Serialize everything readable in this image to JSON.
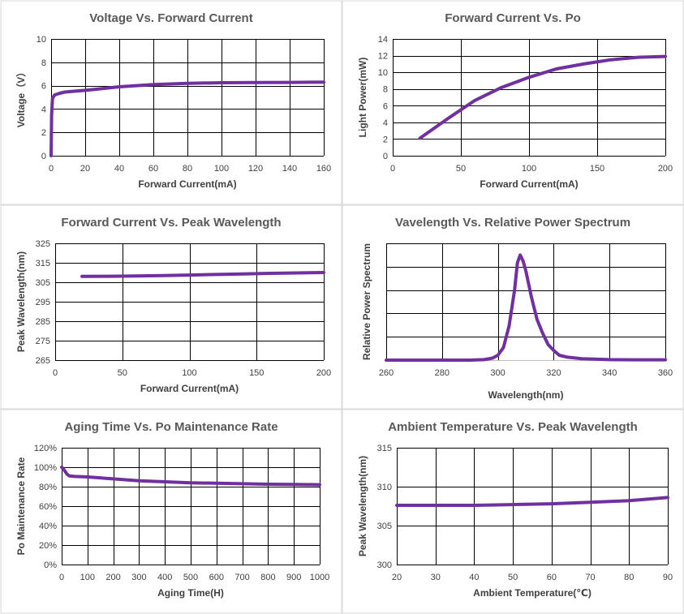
{
  "colors": {
    "series": "#7030a0",
    "grid": "#000000",
    "border": "#d9d9d9",
    "title": "#595959",
    "text": "#404040"
  },
  "chart_data": [
    {
      "type": "line",
      "title": "Voltage Vs. Forward Current",
      "xlabel": "Forward Current(mA)",
      "ylabel": "Voltage（V）",
      "xlim": [
        0,
        160
      ],
      "ylim": [
        0,
        10
      ],
      "xticks": [
        0,
        20,
        40,
        60,
        80,
        100,
        120,
        140,
        160
      ],
      "yticks": [
        0,
        2,
        4,
        6,
        8,
        10
      ],
      "xtick_labels": [
        "0",
        "20",
        "40",
        "60",
        "80",
        "100",
        "120",
        "140",
        "160"
      ],
      "ytick_labels": [
        "0",
        "2",
        "4",
        "6",
        "8",
        "10"
      ],
      "grid": true,
      "x": [
        0,
        0.3,
        0.8,
        2,
        5,
        8,
        12,
        20,
        30,
        40,
        60,
        80,
        100,
        120,
        140,
        160
      ],
      "y": [
        0,
        3.5,
        4.9,
        5.2,
        5.35,
        5.45,
        5.5,
        5.6,
        5.75,
        5.9,
        6.1,
        6.2,
        6.25,
        6.27,
        6.28,
        6.3
      ]
    },
    {
      "type": "line",
      "title": "Forward Current Vs. Po",
      "xlabel": "Forward Current(mA)",
      "ylabel": "Light Power(mW)",
      "xlim": [
        0,
        200
      ],
      "ylim": [
        0,
        14
      ],
      "xticks": [
        0,
        50,
        100,
        150,
        200
      ],
      "yticks": [
        0,
        2,
        4,
        6,
        8,
        10,
        12,
        14
      ],
      "xtick_labels": [
        "0",
        "50",
        "100",
        "150",
        "200"
      ],
      "ytick_labels": [
        "0",
        "2",
        "4",
        "6",
        "8",
        "10",
        "12",
        "14"
      ],
      "grid": true,
      "x": [
        20,
        40,
        60,
        80,
        100,
        120,
        140,
        160,
        180,
        200
      ],
      "y": [
        2.1,
        4.4,
        6.6,
        8.2,
        9.4,
        10.4,
        11.0,
        11.5,
        11.8,
        11.9
      ]
    },
    {
      "type": "line",
      "title": "Forward Current Vs. Peak Wavelength",
      "xlabel": "Forward Current(mA)",
      "ylabel": "Peak Wavelength(nm)",
      "xlim": [
        0,
        200
      ],
      "ylim": [
        265,
        325
      ],
      "xticks": [
        0,
        50,
        100,
        150,
        200
      ],
      "yticks": [
        265,
        275,
        285,
        295,
        305,
        315,
        325
      ],
      "xtick_labels": [
        "0",
        "50",
        "100",
        "150",
        "200"
      ],
      "ytick_labels": [
        "265",
        "275",
        "285",
        "295",
        "305",
        "315",
        "325"
      ],
      "grid": true,
      "x": [
        20,
        40,
        60,
        80,
        100,
        120,
        140,
        160,
        180,
        200
      ],
      "y": [
        308.0,
        308.1,
        308.2,
        308.4,
        308.7,
        309.0,
        309.3,
        309.6,
        309.8,
        310.0
      ]
    },
    {
      "type": "line",
      "title": "Vavelength Vs. Relative Power Spectrum",
      "xlabel": "Wavelength(nm)",
      "ylabel": "Relative Power Spectrum",
      "xlim": [
        260,
        360
      ],
      "ylim": [
        0,
        1.2
      ],
      "xticks": [
        260,
        280,
        300,
        320,
        340,
        360
      ],
      "yticks": [
        0,
        0.24,
        0.48,
        0.72,
        0.96,
        1.2
      ],
      "xtick_labels": [
        "260",
        "280",
        "300",
        "320",
        "340",
        "360"
      ],
      "ytick_labels": [],
      "grid": true,
      "x": [
        260,
        280,
        290,
        295,
        298,
        300,
        302,
        304,
        306,
        307,
        308,
        309,
        310,
        312,
        314,
        316,
        318,
        320,
        322,
        325,
        330,
        340,
        350,
        360
      ],
      "y": [
        0,
        0,
        0,
        0.005,
        0.02,
        0.05,
        0.13,
        0.35,
        0.72,
        1.0,
        1.08,
        1.02,
        0.92,
        0.65,
        0.42,
        0.28,
        0.16,
        0.1,
        0.05,
        0.03,
        0.015,
        0.005,
        0.003,
        0.003
      ]
    },
    {
      "type": "line",
      "title": "Aging Time Vs. Po Maintenance Rate",
      "xlabel": "Aging Time(H)",
      "ylabel": "Po Maintenance Rate",
      "xlim": [
        0,
        1000
      ],
      "ylim": [
        0,
        120
      ],
      "xticks": [
        0,
        100,
        200,
        300,
        400,
        500,
        600,
        700,
        800,
        900,
        1000
      ],
      "yticks": [
        0,
        20,
        40,
        60,
        80,
        100,
        120
      ],
      "xtick_labels": [
        "0",
        "100",
        "200",
        "300",
        "400",
        "500",
        "600",
        "700",
        "800",
        "900",
        "1000"
      ],
      "ytick_labels": [
        "0%",
        "20%",
        "40%",
        "60%",
        "80%",
        "100%",
        "120%"
      ],
      "grid": true,
      "x": [
        0,
        10,
        20,
        30,
        50,
        100,
        200,
        300,
        400,
        500,
        600,
        700,
        800,
        900,
        1000
      ],
      "y": [
        100,
        97,
        93,
        91,
        90.5,
        90,
        88,
        86,
        85,
        84,
        83.5,
        83,
        82.5,
        82.3,
        82
      ]
    },
    {
      "type": "line",
      "title": "Ambient Temperature Vs. Peak Wavelength",
      "xlabel": "Ambient Temperature(℃)",
      "ylabel": "Peak Wavelength(nm)",
      "xlim": [
        20,
        90
      ],
      "ylim": [
        300,
        315
      ],
      "xticks": [
        20,
        30,
        40,
        50,
        60,
        70,
        80,
        90
      ],
      "yticks": [
        300,
        305,
        310,
        315
      ],
      "xtick_labels": [
        "20",
        "30",
        "40",
        "50",
        "60",
        "70",
        "80",
        "90"
      ],
      "ytick_labels": [
        "300",
        "305",
        "310",
        "315"
      ],
      "grid": true,
      "x": [
        20,
        30,
        40,
        50,
        60,
        70,
        80,
        90
      ],
      "y": [
        307.6,
        307.6,
        307.6,
        307.7,
        307.8,
        308.0,
        308.2,
        308.6
      ]
    }
  ]
}
